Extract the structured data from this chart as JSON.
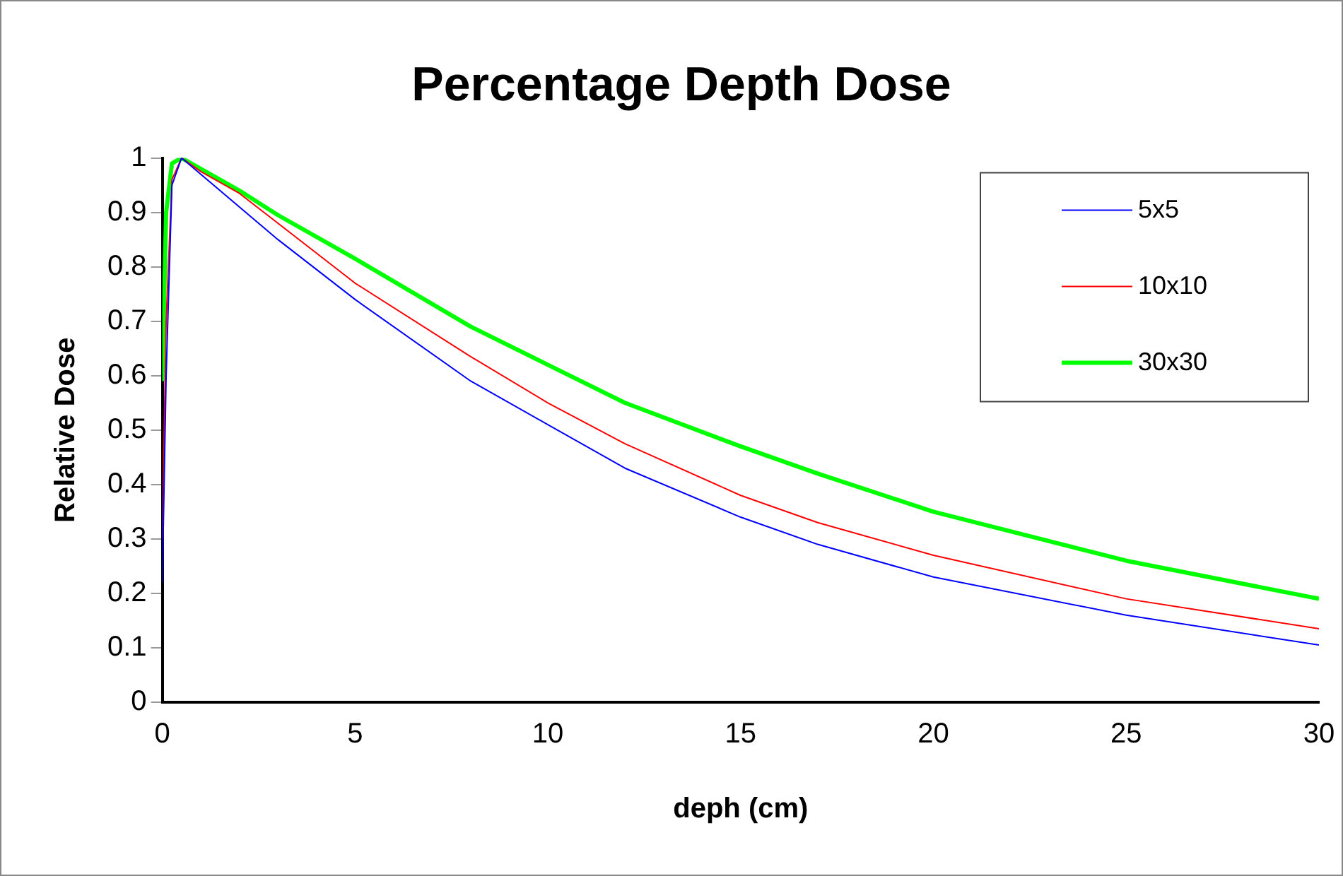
{
  "chart_data": {
    "type": "line",
    "title": "Percentage Depth Dose",
    "xlabel": "deph (cm)",
    "ylabel": "Relative Dose",
    "x": [
      0,
      0.1,
      0.25,
      0.5,
      1,
      2,
      3,
      5,
      8,
      10,
      12,
      15,
      17,
      20,
      25,
      30
    ],
    "series": [
      {
        "name": "5x5",
        "color": "#0000ff",
        "values": [
          0.22,
          0.6,
          0.95,
          1,
          0.97,
          0.91,
          0.85,
          0.74,
          0.59,
          0.51,
          0.43,
          0.34,
          0.29,
          0.23,
          0.16,
          0.105
        ]
      },
      {
        "name": "10x10",
        "color": "#ff0000",
        "values": [
          0.3,
          0.7,
          0.96,
          1,
          0.975,
          0.935,
          0.88,
          0.77,
          0.635,
          0.55,
          0.475,
          0.38,
          0.33,
          0.27,
          0.19,
          0.135
        ]
      },
      {
        "name": "30x30",
        "color": "#00ff00",
        "values": [
          0.59,
          0.9,
          0.99,
          1,
          0.98,
          0.94,
          0.895,
          0.815,
          0.69,
          0.62,
          0.55,
          0.47,
          0.42,
          0.35,
          0.26,
          0.19
        ]
      }
    ],
    "xlim": [
      0,
      30
    ],
    "xticks": [
      0,
      5,
      10,
      15,
      20,
      25,
      30
    ],
    "ylim": [
      0,
      1
    ],
    "yticks": [
      0,
      0.1,
      0.2,
      0.3,
      0.4,
      0.5,
      0.6,
      0.7,
      0.8,
      0.9,
      1
    ],
    "grid": false,
    "legend": "top right",
    "marker": "none",
    "line_style": "solid"
  }
}
